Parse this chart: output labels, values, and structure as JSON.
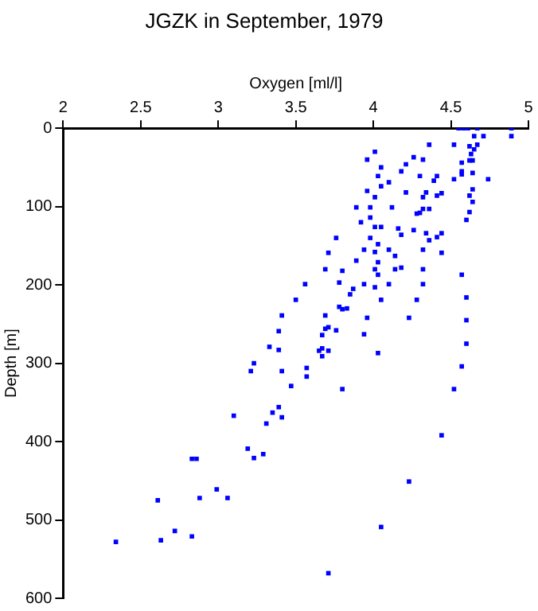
{
  "chart_data": {
    "type": "scatter",
    "title": "JGZK in September, 1979",
    "xlabel": "Oxygen [ml/l]",
    "ylabel": "Depth [m]",
    "xlim": [
      2,
      5
    ],
    "xticks": [
      2,
      2.5,
      3,
      3.5,
      4,
      4.5,
      5
    ],
    "ylim": [
      600,
      0
    ],
    "yticks": [
      0,
      100,
      200,
      300,
      400,
      500,
      600
    ],
    "grid": false,
    "legend": false,
    "marker": "square",
    "series": [
      {
        "color": "#0000ff",
        "x": [
          4.55,
          4.58,
          4.61,
          4.67,
          4.89,
          4.65,
          4.71,
          4.89,
          4.36,
          4.52,
          4.62,
          4.67,
          4.65,
          4.63,
          4.62,
          4.64,
          4.01,
          3.96,
          4.26,
          4.32,
          4.57,
          4.21,
          4.05,
          4.18,
          4.57,
          4.57,
          4.64,
          4.03,
          4.3,
          4.41,
          4.52,
          4.74,
          4.39,
          4.1,
          4.05,
          4.64,
          3.96,
          4.21,
          4.34,
          4.44,
          4.41,
          4.01,
          4.32,
          4.62,
          4.64,
          3.89,
          3.98,
          4.12,
          4.36,
          4.28,
          4.3,
          4.32,
          4.62,
          3.98,
          4.6,
          3.92,
          4.05,
          4.01,
          4.16,
          4.26,
          4.34,
          4.44,
          4.18,
          3.76,
          3.98,
          4.36,
          4.41,
          4.03,
          3.94,
          4.1,
          4.32,
          3.71,
          4.01,
          4.44,
          4.14,
          3.89,
          4.03,
          3.69,
          3.8,
          4.01,
          4.14,
          4.18,
          4.32,
          4.03,
          4.57,
          3.56,
          3.78,
          3.87,
          3.94,
          4.01,
          4.1,
          4.32,
          3.85,
          3.78,
          3.8,
          3.83,
          3.5,
          4.05,
          4.28,
          4.6,
          3.41,
          3.69,
          3.96,
          4.23,
          4.6,
          3.39,
          3.69,
          3.71,
          3.76,
          3.67,
          3.94,
          4.6,
          3.33,
          3.39,
          3.67,
          3.65,
          3.71,
          3.67,
          4.03,
          3.23,
          3.21,
          3.41,
          3.57,
          3.57,
          4.57,
          3.47,
          3.8,
          4.52,
          3.39,
          3.35,
          3.41,
          3.1,
          3.31,
          4.44,
          3.19,
          3.29,
          3.23,
          2.83,
          2.86,
          4.23,
          2.61,
          2.88,
          2.99,
          3.06,
          4.05,
          2.72,
          2.34,
          2.63,
          2.83,
          3.71
        ],
        "values": [
          0,
          0,
          0,
          0,
          0,
          10,
          10,
          10,
          21,
          21,
          23,
          21,
          27,
          33,
          41,
          41,
          30,
          40,
          37,
          40,
          44,
          46,
          50,
          55,
          55,
          59,
          57,
          61,
          61,
          61,
          65,
          65,
          67,
          69,
          74,
          78,
          80,
          82,
          82,
          83,
          86,
          88,
          88,
          86,
          94,
          101,
          101,
          101,
          103,
          109,
          108,
          103,
          107,
          114,
          117,
          120,
          126,
          126,
          128,
          130,
          134,
          134,
          136,
          140,
          140,
          143,
          139,
          148,
          155,
          155,
          155,
          159,
          158,
          159,
          163,
          169,
          171,
          180,
          182,
          180,
          180,
          178,
          180,
          187,
          187,
          199,
          197,
          205,
          199,
          203,
          199,
          199,
          212,
          228,
          231,
          230,
          219,
          219,
          219,
          216,
          239,
          239,
          242,
          242,
          245,
          259,
          256,
          254,
          258,
          264,
          263,
          275,
          279,
          283,
          281,
          284,
          284,
          291,
          287,
          300,
          310,
          310,
          306,
          317,
          304,
          329,
          333,
          333,
          356,
          363,
          369,
          367,
          377,
          392,
          409,
          416,
          421,
          422,
          422,
          451,
          475,
          472,
          461,
          472,
          509,
          514,
          528,
          526,
          521,
          568
        ]
      }
    ]
  }
}
